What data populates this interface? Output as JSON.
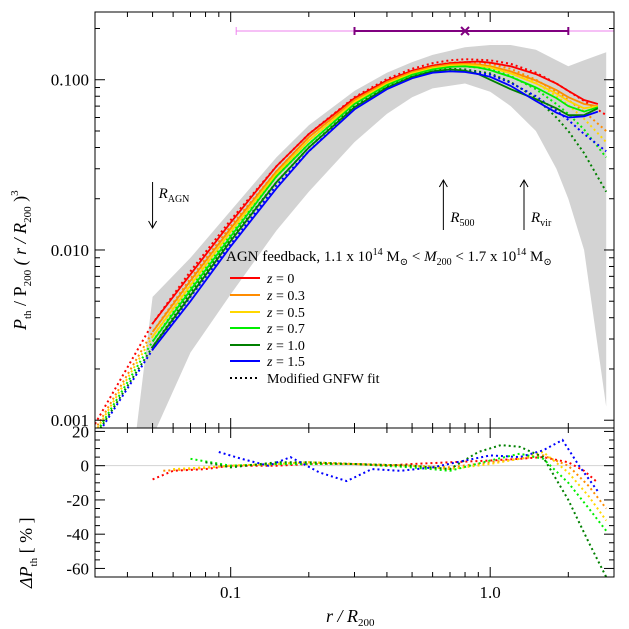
{
  "chart_data": [
    {
      "panel": "top",
      "type": "line",
      "x_scale": "log",
      "y_scale": "log",
      "xlim": [
        0.03,
        3.0
      ],
      "ylim": [
        0.0009,
        0.25
      ],
      "ylabel": {
        "main": "P",
        "sub1": "th",
        "mid": " / P",
        "sub2": "200",
        "paren_open": " ( r / R",
        "sub3": "200",
        "paren_close": " )",
        "sup": "3"
      },
      "y_ticks": [
        {
          "value": 0.001,
          "label": "0.001"
        },
        {
          "value": 0.01,
          "label": "0.010"
        },
        {
          "value": 0.1,
          "label": "0.100"
        }
      ],
      "title_annotation": {
        "text_prefix": "AGN feedback, 1.1 x 10",
        "exp1": "14",
        "msun1": " M",
        "sun_sub1": "⊙",
        "lt1": " < ",
        "m200": "M",
        "m200_sub": "200",
        "lt2": " < 1.7 x 10",
        "exp2": "14",
        "msun2": " M",
        "sun_sub2": "⊙"
      },
      "markers": [
        {
          "label": "R",
          "sub": "AGN",
          "x": 0.05,
          "direction": "down"
        },
        {
          "label": "R",
          "sub": "500",
          "x": 0.66,
          "direction": "up"
        },
        {
          "label": "R",
          "sub": "vir",
          "x": 1.35,
          "direction": "up"
        }
      ],
      "range_bar": {
        "outer": [
          0.105,
          3.0
        ],
        "inner": [
          0.3,
          2.0
        ],
        "center": 0.8,
        "outer_color": "#ee82ee",
        "inner_color": "#800080"
      },
      "scatter_band_color": "#d3d3d3",
      "scatter_band": {
        "x": [
          0.05,
          0.07,
          0.1,
          0.15,
          0.2,
          0.3,
          0.4,
          0.5,
          0.6,
          0.8,
          1.0,
          1.2,
          1.5,
          1.8,
          2.0,
          2.3,
          2.8
        ],
        "upper": [
          0.0053,
          0.009,
          0.017,
          0.035,
          0.054,
          0.086,
          0.11,
          0.127,
          0.14,
          0.155,
          0.16,
          0.16,
          0.15,
          0.13,
          0.12,
          0.13,
          0.145
        ],
        "lower": [
          0.0008,
          0.0025,
          0.0055,
          0.013,
          0.022,
          0.043,
          0.063,
          0.079,
          0.089,
          0.095,
          0.085,
          0.07,
          0.05,
          0.03,
          0.02,
          0.01,
          0.0012
        ],
        "lower_start_x": 0.043
      },
      "x": [
        0.05,
        0.07,
        0.1,
        0.15,
        0.2,
        0.3,
        0.4,
        0.5,
        0.6,
        0.7,
        0.8,
        0.9,
        1.0,
        1.2,
        1.5,
        1.8,
        2.0,
        2.3,
        2.6
      ],
      "series": [
        {
          "name": "z = 0",
          "z": "0",
          "color": "#ff0000",
          "values": [
            0.0037,
            0.0072,
            0.0145,
            0.031,
            0.048,
            0.078,
            0.099,
            0.113,
            0.121,
            0.125,
            0.127,
            0.128,
            0.126,
            0.12,
            0.108,
            0.095,
            0.086,
            0.076,
            0.072
          ]
        },
        {
          "name": "z = 0.3",
          "z": "0.3",
          "color": "#ff8c00",
          "values": [
            0.0033,
            0.0066,
            0.0134,
            0.029,
            0.046,
            0.076,
            0.097,
            0.111,
            0.119,
            0.123,
            0.124,
            0.123,
            0.12,
            0.112,
            0.099,
            0.087,
            0.079,
            0.072,
            0.07
          ]
        },
        {
          "name": "z = 0.5",
          "z": "0.5",
          "color": "#ffd700",
          "values": [
            0.0031,
            0.0062,
            0.0128,
            0.028,
            0.044,
            0.074,
            0.095,
            0.109,
            0.117,
            0.121,
            0.122,
            0.121,
            0.118,
            0.109,
            0.095,
            0.083,
            0.075,
            0.068,
            0.07
          ]
        },
        {
          "name": "z = 0.7",
          "z": "0.7",
          "color": "#00ee00",
          "values": [
            0.0029,
            0.0058,
            0.012,
            0.027,
            0.042,
            0.072,
            0.093,
            0.107,
            0.115,
            0.119,
            0.12,
            0.118,
            0.114,
            0.104,
            0.09,
            0.078,
            0.07,
            0.065,
            0.069
          ]
        },
        {
          "name": "z = 1.0",
          "z": "1.0",
          "color": "#008000",
          "values": [
            0.0027,
            0.0054,
            0.0113,
            0.025,
            0.04,
            0.069,
            0.09,
            0.104,
            0.112,
            0.115,
            0.113,
            0.108,
            0.1,
            0.088,
            0.077,
            0.068,
            0.062,
            0.062,
            0.068
          ]
        },
        {
          "name": "z = 1.5",
          "z": "1.5",
          "color": "#0000ff",
          "values": [
            0.0026,
            0.005,
            0.0105,
            0.023,
            0.038,
            0.067,
            0.088,
            0.102,
            0.11,
            0.112,
            0.111,
            0.108,
            0.104,
            0.092,
            0.075,
            0.064,
            0.06,
            0.061,
            0.065
          ]
        }
      ],
      "fits": {
        "legend_label": "Modified GNFW fit",
        "x": [
          0.03,
          0.05,
          0.07,
          0.1,
          0.15,
          0.2,
          0.3,
          0.4,
          0.5,
          0.6,
          0.7,
          0.8,
          1.0,
          1.2,
          1.5,
          1.8,
          2.0,
          2.3,
          2.8
        ],
        "series": [
          {
            "z": "0",
            "color": "#ff0000",
            "values": [
              0.00095,
              0.0037,
              0.0075,
              0.015,
              0.031,
              0.048,
              0.079,
              0.101,
              0.116,
              0.125,
              0.13,
              0.132,
              0.13,
              0.124,
              0.11,
              0.095,
              0.086,
              0.075,
              0.062
            ]
          },
          {
            "z": "0.3",
            "color": "#ff8c00",
            "values": [
              0.00088,
              0.0033,
              0.0068,
              0.0138,
              0.029,
              0.046,
              0.077,
              0.098,
              0.113,
              0.121,
              0.126,
              0.127,
              0.124,
              0.116,
              0.1,
              0.085,
              0.076,
              0.065,
              0.05
            ]
          },
          {
            "z": "0.5",
            "color": "#ffd700",
            "values": [
              0.00085,
              0.0031,
              0.0064,
              0.013,
              0.028,
              0.044,
              0.075,
              0.096,
              0.111,
              0.119,
              0.123,
              0.124,
              0.121,
              0.112,
              0.096,
              0.08,
              0.071,
              0.059,
              0.043
            ]
          },
          {
            "z": "0.7",
            "color": "#00ee00",
            "values": [
              0.00082,
              0.0029,
              0.006,
              0.0123,
              0.027,
              0.042,
              0.072,
              0.094,
              0.108,
              0.116,
              0.12,
              0.12,
              0.116,
              0.105,
              0.088,
              0.072,
              0.063,
              0.051,
              0.035
            ]
          },
          {
            "z": "1.0",
            "color": "#008000",
            "values": [
              0.0008,
              0.0027,
              0.0056,
              0.0116,
              0.025,
              0.04,
              0.07,
              0.091,
              0.105,
              0.113,
              0.116,
              0.115,
              0.109,
              0.097,
              0.078,
              0.06,
              0.05,
              0.037,
              0.022
            ]
          },
          {
            "z": "1.5",
            "color": "#0000ff",
            "values": [
              0.00078,
              0.0026,
              0.0053,
              0.0108,
              0.024,
              0.038,
              0.068,
              0.089,
              0.103,
              0.111,
              0.114,
              0.113,
              0.107,
              0.096,
              0.08,
              0.066,
              0.058,
              0.048,
              0.038
            ]
          }
        ]
      }
    },
    {
      "panel": "bottom",
      "type": "line",
      "x_scale": "log",
      "xlim": [
        0.03,
        3.0
      ],
      "ylim": [
        -65,
        22
      ],
      "xlabel": {
        "main": "r / R",
        "sub": "200"
      },
      "ylabel": {
        "main": "ΔP",
        "sub": "th",
        "rest": " [ % ]"
      },
      "x_ticks": [
        {
          "value": 0.1,
          "label": "0.1"
        },
        {
          "value": 1.0,
          "label": "1.0"
        }
      ],
      "y_ticks": [
        {
          "value": 20,
          "label": "20"
        },
        {
          "value": 0,
          "label": "0"
        },
        {
          "value": -20,
          "label": "-20"
        },
        {
          "value": -40,
          "label": "-40"
        },
        {
          "value": -60,
          "label": "-60"
        }
      ],
      "series": [
        {
          "z": "0",
          "color": "#ff0000",
          "x": [
            0.05,
            0.06,
            0.08,
            0.1,
            0.15,
            0.2,
            0.3,
            0.4,
            0.5,
            0.7,
            1.0,
            1.3,
            1.6,
            2.0,
            2.3,
            2.6
          ],
          "values": [
            -8,
            -3,
            -2,
            0,
            0,
            1,
            1,
            0,
            1,
            2,
            3,
            4,
            5,
            2,
            -3,
            -10
          ]
        },
        {
          "z": "0.3",
          "color": "#ff8c00",
          "x": [
            0.055,
            0.07,
            0.1,
            0.15,
            0.2,
            0.3,
            0.5,
            0.7,
            1.0,
            1.3,
            1.6,
            2.0,
            2.4,
            2.8
          ],
          "values": [
            -3,
            -2,
            0,
            1,
            2,
            1,
            0,
            -1,
            2,
            4,
            6,
            0,
            -12,
            -25
          ]
        },
        {
          "z": "0.5",
          "color": "#ffd700",
          "x": [
            0.06,
            0.08,
            0.1,
            0.15,
            0.2,
            0.3,
            0.5,
            0.7,
            1.0,
            1.3,
            1.6,
            2.0,
            2.4,
            2.8
          ],
          "values": [
            -2,
            -1,
            0,
            1,
            2,
            1,
            0,
            -2,
            1,
            4,
            8,
            -4,
            -18,
            -32
          ]
        },
        {
          "z": "0.7",
          "color": "#00ee00",
          "x": [
            0.07,
            0.1,
            0.15,
            0.2,
            0.3,
            0.5,
            0.7,
            1.0,
            1.3,
            1.6,
            2.0,
            2.4,
            2.8
          ],
          "values": [
            4,
            0,
            1,
            1,
            1,
            -1,
            -3,
            3,
            7,
            4,
            -10,
            -25,
            -38
          ]
        },
        {
          "z": "1.0",
          "color": "#008000",
          "x": [
            0.08,
            0.1,
            0.15,
            0.2,
            0.3,
            0.5,
            0.7,
            0.9,
            1.1,
            1.3,
            1.6,
            2.0,
            2.4,
            2.8
          ],
          "values": [
            2,
            -1,
            2,
            2,
            1,
            0,
            -2,
            8,
            12,
            11,
            5,
            -20,
            -45,
            -65
          ]
        },
        {
          "z": "1.5",
          "color": "#0000ff",
          "x": [
            0.09,
            0.11,
            0.14,
            0.17,
            0.22,
            0.28,
            0.35,
            0.45,
            0.6,
            0.8,
            1.0,
            1.3,
            1.6,
            1.9,
            2.2,
            2.6
          ],
          "values": [
            8,
            4,
            0,
            5,
            -4,
            -9,
            -2,
            -3,
            -1,
            3,
            6,
            5,
            9,
            15,
            0,
            -15
          ]
        }
      ]
    }
  ]
}
